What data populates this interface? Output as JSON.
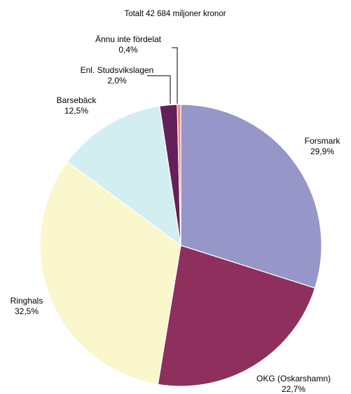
{
  "chart_data": {
    "type": "pie",
    "title": "Totalt 42 684 miljoner kronor",
    "slices": [
      {
        "label": "Forsmark",
        "value_text": "29,9%",
        "value": 29.9,
        "color": "#9796c8"
      },
      {
        "label": "OKG (Oskarshamn)",
        "value_text": "22,7%",
        "value": 22.7,
        "color": "#8e2f5d"
      },
      {
        "label": "Ringhals",
        "value_text": "32,5%",
        "value": 32.5,
        "color": "#fbf7cd"
      },
      {
        "label": "Barsebäck",
        "value_text": "12,5%",
        "value": 12.5,
        "color": "#d2eef0"
      },
      {
        "label": "Enl. Studsvikslagen",
        "value_text": "2,0%",
        "value": 2.0,
        "color": "#63205a"
      },
      {
        "label": "Ännu inte fördelat",
        "value_text": "0,4%",
        "value": 0.4,
        "color": "#ef8a76"
      }
    ],
    "start_angle": "12 o'clock",
    "direction": "clockwise"
  }
}
